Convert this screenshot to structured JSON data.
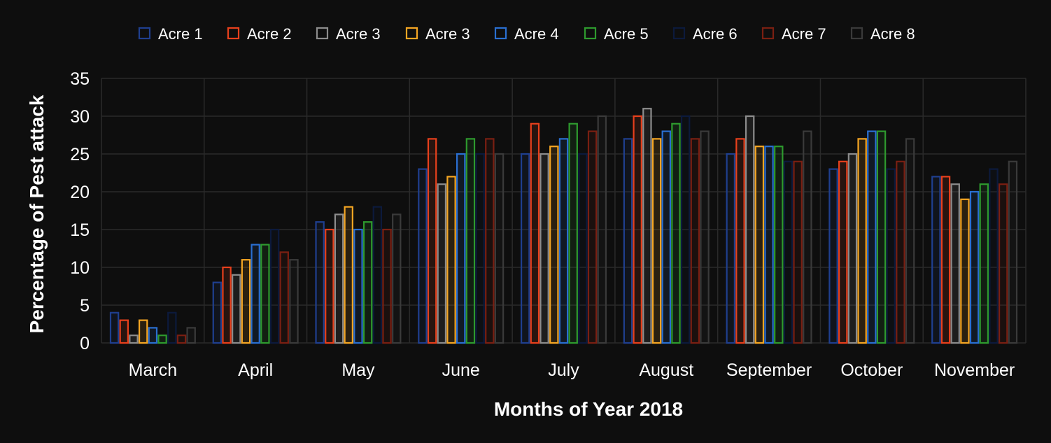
{
  "chart_data": {
    "type": "bar",
    "title": "",
    "xlabel": "Months of Year 2018",
    "ylabel": "Percentage of Pest attack",
    "ylim": [
      0,
      35
    ],
    "yticks": [
      "0",
      "5",
      "10",
      "15",
      "20",
      "25",
      "30",
      "35"
    ],
    "grid": true,
    "legend_position": "top",
    "categories": [
      "March",
      "April",
      "May",
      "June",
      "July",
      "August",
      "September",
      "October",
      "November"
    ],
    "series": [
      {
        "name": "Acre 1",
        "color": "#1f3f8f",
        "values": [
          4,
          8,
          16,
          23,
          25,
          27,
          25,
          23,
          22
        ]
      },
      {
        "name": "Acre 2",
        "color": "#e8401c",
        "values": [
          3,
          10,
          15,
          27,
          29,
          30,
          27,
          24,
          22
        ]
      },
      {
        "name": "Acre 3",
        "color": "#8c8c8c",
        "values": [
          1,
          9,
          17,
          21,
          25,
          31,
          30,
          25,
          21
        ]
      },
      {
        "name": "Acre 3",
        "color": "#f5a623",
        "values": [
          3,
          11,
          18,
          22,
          26,
          27,
          26,
          27,
          19
        ]
      },
      {
        "name": "Acre 4",
        "color": "#2a6fd1",
        "values": [
          2,
          13,
          15,
          25,
          27,
          28,
          26,
          28,
          20
        ]
      },
      {
        "name": "Acre 5",
        "color": "#2e9a2e",
        "values": [
          1,
          13,
          16,
          27,
          29,
          29,
          26,
          28,
          21
        ]
      },
      {
        "name": "Acre 6",
        "color": "#0c1a3c",
        "values": [
          4,
          15,
          18,
          25,
          25,
          30,
          24,
          23,
          23
        ]
      },
      {
        "name": "Acre 7",
        "color": "#7a1f12",
        "values": [
          1,
          12,
          15,
          27,
          28,
          27,
          24,
          24,
          21
        ]
      },
      {
        "name": "Acre 8",
        "color": "#3a3a3a",
        "values": [
          2,
          11,
          17,
          25,
          30,
          28,
          28,
          27,
          24
        ]
      }
    ]
  }
}
